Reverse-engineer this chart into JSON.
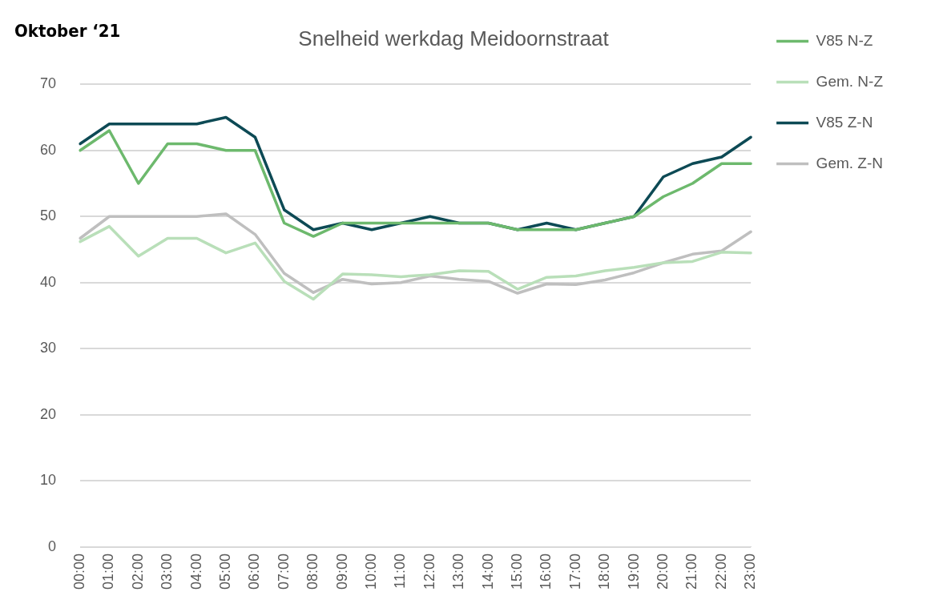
{
  "chart_data": {
    "type": "line",
    "title": "Snelheid werkdag Meidoornstraat",
    "annotations": [
      "Oktober ‘21"
    ],
    "categories": [
      "00:00",
      "01:00",
      "02:00",
      "03:00",
      "04:00",
      "05:00",
      "06:00",
      "07:00",
      "08:00",
      "09:00",
      "10:00",
      "11:00",
      "12:00",
      "13:00",
      "14:00",
      "15:00",
      "16:00",
      "17:00",
      "18:00",
      "19:00",
      "20:00",
      "21:00",
      "22:00",
      "23:00"
    ],
    "series": [
      {
        "name": "V85 N-Z",
        "color": "#6db96d",
        "values": [
          60,
          63,
          55,
          61,
          61,
          60,
          60,
          49,
          47,
          49,
          49,
          49,
          49,
          49,
          49,
          48,
          48,
          48,
          49,
          50,
          53,
          55,
          58,
          58
        ]
      },
      {
        "name": "Gem. N-Z",
        "color": "#b9dfb9",
        "values": [
          46.2,
          48.5,
          44,
          46.7,
          46.7,
          44.5,
          46,
          40.2,
          37.5,
          41.3,
          41.2,
          40.9,
          41.2,
          41.8,
          41.7,
          39,
          40.8,
          41,
          41.8,
          42.3,
          43,
          43.2,
          44.6,
          44.5
        ]
      },
      {
        "name": "V85 Z-N",
        "color": "#0d4a55",
        "values": [
          61,
          64,
          64,
          64,
          64,
          65,
          62,
          51,
          48,
          49,
          48,
          49,
          50,
          49,
          49,
          48,
          49,
          48,
          49,
          50,
          56,
          58,
          59,
          62
        ]
      },
      {
        "name": "Gem. Z-N",
        "color": "#bfbfbf",
        "values": [
          46.7,
          50,
          50,
          50,
          50,
          50.4,
          47.3,
          41.4,
          38.5,
          40.5,
          39.8,
          40,
          41,
          40.5,
          40.2,
          38.4,
          39.8,
          39.7,
          40.4,
          41.5,
          43,
          44.3,
          44.8,
          47.7
        ]
      }
    ],
    "ylim": [
      0,
      70
    ],
    "yticks": [
      0,
      10,
      20,
      30,
      40,
      50,
      60,
      70
    ],
    "grid": "y",
    "legend": "right",
    "marker": "none",
    "line_style": "solid"
  }
}
